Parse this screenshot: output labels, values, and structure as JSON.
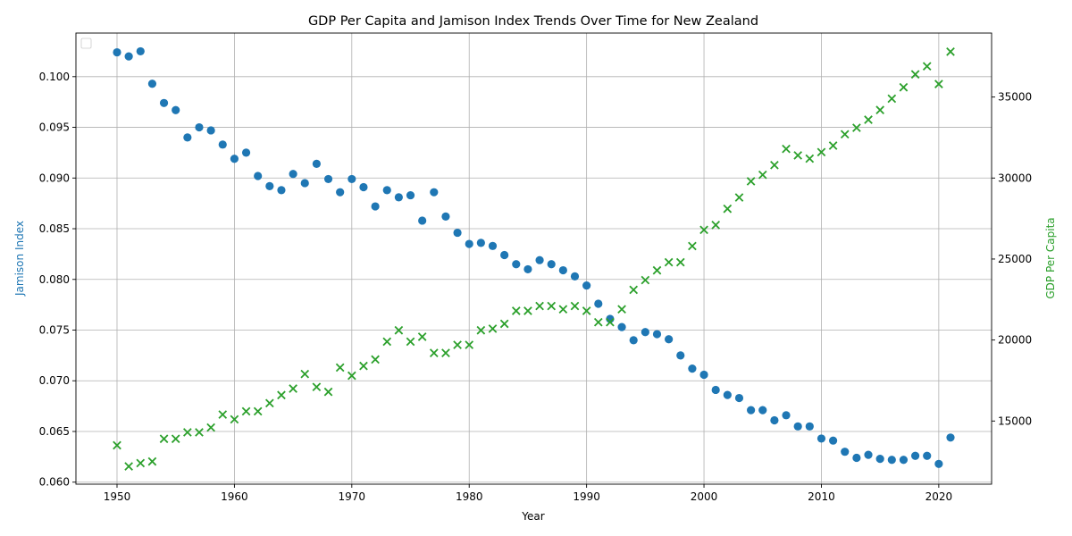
{
  "chart_data": {
    "type": "scatter",
    "title": "GDP Per Capita and Jamison Index Trends Over Time for New Zealand",
    "xlabel": "Year",
    "ylabel_left": "Jamison Index",
    "ylabel_right": "GDP Per Capita",
    "xlim": [
      1946.5,
      2024.5
    ],
    "ylim_left": [
      0.0598,
      0.1043
    ],
    "ylim_right": [
      11100,
      38950
    ],
    "x_ticks": [
      1950,
      1960,
      1970,
      1980,
      1990,
      2000,
      2010,
      2020
    ],
    "y_left_ticks": [
      0.06,
      0.065,
      0.07,
      0.075,
      0.08,
      0.085,
      0.09,
      0.095,
      0.1
    ],
    "y_right_ticks": [
      15000,
      20000,
      25000,
      30000,
      35000
    ],
    "grid": true,
    "legend": "upper-left (empty)",
    "colors": {
      "left_axis": "#1f77b4",
      "right_axis": "#2ca02c"
    },
    "series": [
      {
        "name": "",
        "axis": "left",
        "marker": "circle",
        "color": "#1f77b4",
        "points": [
          [
            1950,
            0.1024
          ],
          [
            1951,
            0.102
          ],
          [
            1952,
            0.1025
          ],
          [
            1953,
            0.0993
          ],
          [
            1954,
            0.0974
          ],
          [
            1955,
            0.0967
          ],
          [
            1956,
            0.094
          ],
          [
            1957,
            0.095
          ],
          [
            1958,
            0.0947
          ],
          [
            1959,
            0.0933
          ],
          [
            1960,
            0.0919
          ],
          [
            1961,
            0.0925
          ],
          [
            1962,
            0.0902
          ],
          [
            1963,
            0.0892
          ],
          [
            1964,
            0.0888
          ],
          [
            1965,
            0.0904
          ],
          [
            1966,
            0.0895
          ],
          [
            1967,
            0.0914
          ],
          [
            1968,
            0.0899
          ],
          [
            1969,
            0.0886
          ],
          [
            1970,
            0.0899
          ],
          [
            1971,
            0.0891
          ],
          [
            1972,
            0.0872
          ],
          [
            1973,
            0.0888
          ],
          [
            1974,
            0.0881
          ],
          [
            1975,
            0.0883
          ],
          [
            1976,
            0.0858
          ],
          [
            1977,
            0.0886
          ],
          [
            1978,
            0.0862
          ],
          [
            1979,
            0.0846
          ],
          [
            1980,
            0.0835
          ],
          [
            1981,
            0.0836
          ],
          [
            1982,
            0.0833
          ],
          [
            1983,
            0.0824
          ],
          [
            1984,
            0.0815
          ],
          [
            1985,
            0.081
          ],
          [
            1986,
            0.0819
          ],
          [
            1987,
            0.0815
          ],
          [
            1988,
            0.0809
          ],
          [
            1989,
            0.0803
          ],
          [
            1990,
            0.0794
          ],
          [
            1991,
            0.0776
          ],
          [
            1992,
            0.0761
          ],
          [
            1993,
            0.0753
          ],
          [
            1994,
            0.074
          ],
          [
            1995,
            0.0748
          ],
          [
            1996,
            0.0746
          ],
          [
            1997,
            0.0741
          ],
          [
            1998,
            0.0725
          ],
          [
            1999,
            0.0712
          ],
          [
            2000,
            0.0706
          ],
          [
            2001,
            0.0691
          ],
          [
            2002,
            0.0686
          ],
          [
            2003,
            0.0683
          ],
          [
            2004,
            0.0671
          ],
          [
            2005,
            0.0671
          ],
          [
            2006,
            0.0661
          ],
          [
            2007,
            0.0666
          ],
          [
            2008,
            0.0655
          ],
          [
            2009,
            0.0655
          ],
          [
            2010,
            0.0643
          ],
          [
            2011,
            0.0641
          ],
          [
            2012,
            0.063
          ],
          [
            2013,
            0.0624
          ],
          [
            2014,
            0.0627
          ],
          [
            2015,
            0.0623
          ],
          [
            2016,
            0.0622
          ],
          [
            2017,
            0.0622
          ],
          [
            2018,
            0.0626
          ],
          [
            2019,
            0.0626
          ],
          [
            2020,
            0.0618
          ],
          [
            2021,
            0.0644
          ]
        ]
      },
      {
        "name": "",
        "axis": "right",
        "marker": "x",
        "color": "#2ca02c",
        "points": [
          [
            1950,
            13500
          ],
          [
            1951,
            12200
          ],
          [
            1952,
            12400
          ],
          [
            1953,
            12500
          ],
          [
            1954,
            13900
          ],
          [
            1955,
            13900
          ],
          [
            1956,
            14300
          ],
          [
            1957,
            14300
          ],
          [
            1958,
            14600
          ],
          [
            1959,
            15400
          ],
          [
            1960,
            15100
          ],
          [
            1961,
            15600
          ],
          [
            1962,
            15600
          ],
          [
            1963,
            16100
          ],
          [
            1964,
            16600
          ],
          [
            1965,
            17000
          ],
          [
            1966,
            17900
          ],
          [
            1967,
            17100
          ],
          [
            1968,
            16800
          ],
          [
            1969,
            18300
          ],
          [
            1970,
            17800
          ],
          [
            1971,
            18400
          ],
          [
            1972,
            18800
          ],
          [
            1973,
            19900
          ],
          [
            1974,
            20600
          ],
          [
            1975,
            19900
          ],
          [
            1976,
            20200
          ],
          [
            1977,
            19200
          ],
          [
            1978,
            19200
          ],
          [
            1979,
            19700
          ],
          [
            1980,
            19700
          ],
          [
            1981,
            20600
          ],
          [
            1982,
            20700
          ],
          [
            1983,
            21000
          ],
          [
            1984,
            21800
          ],
          [
            1985,
            21800
          ],
          [
            1986,
            22100
          ],
          [
            1987,
            22100
          ],
          [
            1988,
            21900
          ],
          [
            1989,
            22100
          ],
          [
            1990,
            21800
          ],
          [
            1991,
            21100
          ],
          [
            1992,
            21100
          ],
          [
            1993,
            21900
          ],
          [
            1994,
            23100
          ],
          [
            1995,
            23700
          ],
          [
            1996,
            24300
          ],
          [
            1997,
            24800
          ],
          [
            1998,
            24800
          ],
          [
            1999,
            25800
          ],
          [
            2000,
            26800
          ],
          [
            2001,
            27100
          ],
          [
            2002,
            28100
          ],
          [
            2003,
            28800
          ],
          [
            2004,
            29800
          ],
          [
            2005,
            30200
          ],
          [
            2006,
            30800
          ],
          [
            2007,
            31800
          ],
          [
            2008,
            31400
          ],
          [
            2009,
            31200
          ],
          [
            2010,
            31600
          ],
          [
            2011,
            32000
          ],
          [
            2012,
            32700
          ],
          [
            2013,
            33100
          ],
          [
            2014,
            33600
          ],
          [
            2015,
            34200
          ],
          [
            2016,
            34900
          ],
          [
            2017,
            35600
          ],
          [
            2018,
            36400
          ],
          [
            2019,
            36900
          ],
          [
            2020,
            35800
          ],
          [
            2021,
            37800
          ]
        ]
      }
    ]
  }
}
